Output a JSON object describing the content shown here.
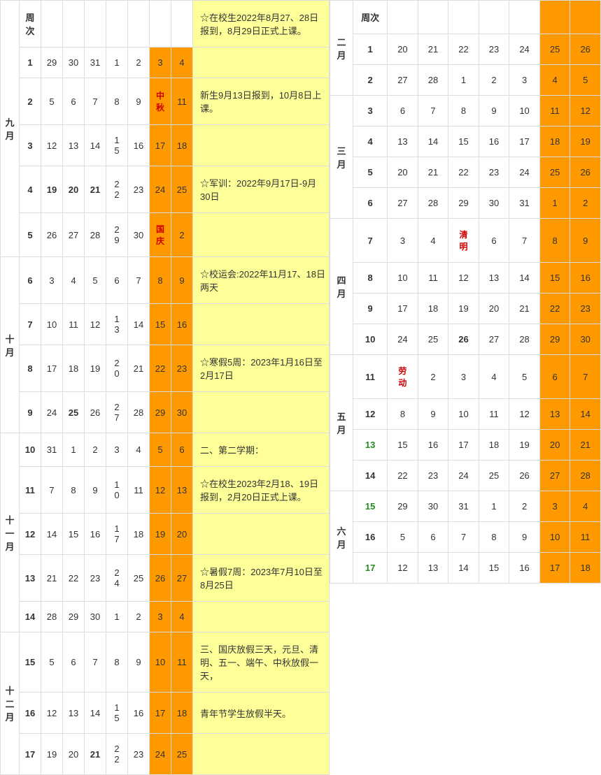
{
  "left": {
    "months": [
      {
        "label": "九月",
        "rows": [
          {
            "week": "周次",
            "days": [
              "",
              "",
              "",
              "",
              "",
              "",
              ""
            ],
            "weekend": 0,
            "note": "☆在校生2022年8月27、28日报到，8月29日正式上课。",
            "noteYellow": true,
            "cut": true
          },
          {
            "week": "1",
            "days": [
              "29",
              "30",
              "31",
              "1",
              "2",
              "3",
              "4"
            ],
            "weekend": 1,
            "note": ""
          },
          {
            "week": "2",
            "days": [
              "5",
              "6",
              "7",
              "8",
              "9",
              "中秋",
              "11"
            ],
            "weekend": 1,
            "holiday": 5,
            "note": "新生9月13日报到，10月8日上课。"
          },
          {
            "week": "3",
            "days": [
              "12",
              "13",
              "14",
              "15",
              "16",
              "17",
              "18"
            ],
            "weekend": 1,
            "wrap": 3,
            "note": ""
          },
          {
            "week": "4",
            "days": [
              "19",
              "20",
              "21",
              "22",
              "23",
              "24",
              "25"
            ],
            "weekend": 1,
            "wrap": 3,
            "bolds": [
              0,
              1,
              2
            ],
            "note": "☆军训：2022年9月17日-9月30日"
          },
          {
            "week": "5",
            "days": [
              "26",
              "27",
              "28",
              "29",
              "30",
              "国庆",
              "2"
            ],
            "weekend": 1,
            "wrap": 3,
            "holiday": 5,
            "note": ""
          }
        ]
      },
      {
        "label": "十月",
        "rows": [
          {
            "week": "6",
            "days": [
              "3",
              "4",
              "5",
              "6",
              "7",
              "8",
              "9"
            ],
            "weekend": 1,
            "note": "☆校运会:2022年11月17、18日两天"
          },
          {
            "week": "7",
            "days": [
              "10",
              "11",
              "12",
              "13",
              "14",
              "15",
              "16"
            ],
            "weekend": 1,
            "wrap": 3,
            "note": ""
          },
          {
            "week": "8",
            "days": [
              "17",
              "18",
              "19",
              "20",
              "21",
              "22",
              "23"
            ],
            "weekend": 1,
            "wrap": 3,
            "note": "☆寒假5周：2023年1月16日至2月17日"
          },
          {
            "week": "9",
            "days": [
              "24",
              "25",
              "26",
              "27",
              "28",
              "29",
              "30"
            ],
            "weekend": 1,
            "wrap": 3,
            "bolds": [
              1
            ],
            "note": ""
          }
        ]
      },
      {
        "label": "十一月",
        "rows": [
          {
            "week": "10",
            "days": [
              "31",
              "1",
              "2",
              "3",
              "4",
              "5",
              "6"
            ],
            "weekend": 1,
            "note": "二、第二学期："
          },
          {
            "week": "11",
            "days": [
              "7",
              "8",
              "9",
              "10",
              "11",
              "12",
              "13"
            ],
            "weekend": 1,
            "wrap": 3,
            "note": "☆在校生2023年2月18、19日报到，2月20日正式上课。"
          },
          {
            "week": "12",
            "days": [
              "14",
              "15",
              "16",
              "17",
              "18",
              "19",
              "20"
            ],
            "weekend": 1,
            "wrap": 3,
            "note": ""
          },
          {
            "week": "13",
            "days": [
              "21",
              "22",
              "23",
              "24",
              "25",
              "26",
              "27"
            ],
            "weekend": 1,
            "wrap": 3,
            "note": "☆暑假7周：2023年7月10日至8月25日"
          },
          {
            "week": "14",
            "days": [
              "28",
              "29",
              "30",
              "1",
              "2",
              "3",
              "4"
            ],
            "weekend": 1,
            "note": ""
          }
        ]
      },
      {
        "label": "十二月",
        "rows": [
          {
            "week": "15",
            "days": [
              "5",
              "6",
              "7",
              "8",
              "9",
              "10",
              "11"
            ],
            "weekend": 1,
            "note": "三、国庆放假三天，元旦、清明、五一、端午、中秋放假一天，"
          },
          {
            "week": "16",
            "days": [
              "12",
              "13",
              "14",
              "15",
              "16",
              "17",
              "18"
            ],
            "weekend": 1,
            "wrap": 3,
            "note": "青年节学生放假半天。"
          },
          {
            "week": "17",
            "days": [
              "19",
              "20",
              "21",
              "22",
              "23",
              "24",
              "25"
            ],
            "weekend": 1,
            "wrap": 3,
            "bolds": [
              2
            ],
            "note": ""
          }
        ]
      }
    ]
  },
  "right": {
    "months": [
      {
        "label": "二月",
        "rows": [
          {
            "week": "周次",
            "days": [
              "",
              "",
              "",
              "",
              "",
              "",
              ""
            ],
            "weekend": 1,
            "cut": true
          },
          {
            "week": "1",
            "days": [
              "20",
              "21",
              "22",
              "23",
              "24",
              "25",
              "26"
            ],
            "weekend": 1
          },
          {
            "week": "2",
            "days": [
              "27",
              "28",
              "1",
              "2",
              "3",
              "4",
              "5"
            ],
            "weekend": 1
          }
        ]
      },
      {
        "label": "三月",
        "rows": [
          {
            "week": "3",
            "days": [
              "6",
              "7",
              "8",
              "9",
              "10",
              "11",
              "12"
            ],
            "weekend": 1
          },
          {
            "week": "4",
            "days": [
              "13",
              "14",
              "15",
              "16",
              "17",
              "18",
              "19"
            ],
            "weekend": 1
          },
          {
            "week": "5",
            "days": [
              "20",
              "21",
              "22",
              "23",
              "24",
              "25",
              "26"
            ],
            "weekend": 1
          },
          {
            "week": "6",
            "days": [
              "27",
              "28",
              "29",
              "30",
              "31",
              "1",
              "2"
            ],
            "weekend": 1
          }
        ]
      },
      {
        "label": "四月",
        "rows": [
          {
            "week": "7",
            "days": [
              "3",
              "4",
              "清明",
              "6",
              "7",
              "8",
              "9"
            ],
            "weekend": 1,
            "redIdx": 2
          },
          {
            "week": "8",
            "days": [
              "10",
              "11",
              "12",
              "13",
              "14",
              "15",
              "16"
            ],
            "weekend": 1
          },
          {
            "week": "9",
            "days": [
              "17",
              "18",
              "19",
              "20",
              "21",
              "22",
              "23"
            ],
            "weekend": 1
          },
          {
            "week": "10",
            "days": [
              "24",
              "25",
              "26",
              "27",
              "28",
              "29",
              "30"
            ],
            "weekend": 1,
            "bolds": [
              2
            ]
          }
        ]
      },
      {
        "label": "五月",
        "rows": [
          {
            "week": "11",
            "days": [
              "劳动",
              "2",
              "3",
              "4",
              "5",
              "6",
              "7"
            ],
            "weekend": 1,
            "redIdx": 0
          },
          {
            "week": "12",
            "days": [
              "8",
              "9",
              "10",
              "11",
              "12",
              "13",
              "14"
            ],
            "weekend": 1
          },
          {
            "week": "13",
            "days": [
              "15",
              "16",
              "17",
              "18",
              "19",
              "20",
              "21"
            ],
            "weekend": 1,
            "wbold": true
          },
          {
            "week": "14",
            "days": [
              "22",
              "23",
              "24",
              "25",
              "26",
              "27",
              "28"
            ],
            "weekend": 1
          }
        ]
      },
      {
        "label": "六月",
        "rows": [
          {
            "week": "15",
            "days": [
              "29",
              "30",
              "31",
              "1",
              "2",
              "3",
              "4"
            ],
            "weekend": 1,
            "wbold": true
          },
          {
            "week": "16",
            "days": [
              "5",
              "6",
              "7",
              "8",
              "9",
              "10",
              "11"
            ],
            "weekend": 1
          },
          {
            "week": "17",
            "days": [
              "12",
              "13",
              "14",
              "15",
              "16",
              "17",
              "18"
            ],
            "weekend": 1,
            "wbold": true
          }
        ]
      }
    ]
  }
}
